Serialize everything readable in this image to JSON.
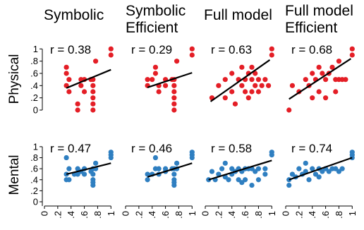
{
  "figure": {
    "row_labels": [
      "Physical",
      "Mental"
    ],
    "column_titles": [
      [
        "Symbolic"
      ],
      [
        "Symbolic",
        "Efficient"
      ],
      [
        "Full model"
      ],
      [
        "Full model",
        "Efficient"
      ]
    ],
    "colors": {
      "physical_points": "#e41e26",
      "mental_points": "#2f7fc1",
      "fit_line": "#000000",
      "axis": "#000000"
    }
  },
  "chart_data": [
    {
      "type": "scatter",
      "row": "Physical",
      "panel": "Symbolic",
      "annotation": "r = 0.38",
      "x": [
        0.33,
        0.33,
        0.33,
        0.37,
        0.37,
        0.5,
        0.5,
        0.55,
        0.55,
        0.6,
        0.6,
        0.7,
        0.73,
        0.73,
        0.73,
        0.73,
        0.73,
        0.73,
        0.77,
        1.0,
        1.0
      ],
      "y": [
        0.7,
        0.6,
        0.4,
        0.5,
        0.3,
        0.1,
        0.0,
        0.5,
        0.4,
        0.5,
        0.3,
        0.5,
        0.5,
        0.4,
        0.3,
        0.2,
        0.1,
        0.0,
        0.8,
        1.0,
        0.9
      ],
      "fit_line": {
        "x": [
          0.33,
          1.0
        ],
        "y": [
          0.36,
          0.66
        ]
      },
      "xlim": [
        0,
        1.05
      ],
      "ylim": [
        0,
        1.05
      ],
      "xticks": [
        0,
        0.2,
        0.4,
        0.6,
        0.8,
        1
      ],
      "yticks": [
        0,
        0.2,
        0.4,
        0.6,
        0.8,
        1
      ]
    },
    {
      "type": "scatter",
      "row": "Physical",
      "panel": "Symbolic Efficient",
      "annotation": "r = 0.29",
      "x": [
        0.33,
        0.33,
        0.4,
        0.45,
        0.45,
        0.5,
        0.5,
        0.6,
        0.6,
        0.7,
        0.73,
        0.73,
        0.73,
        0.73,
        0.73,
        0.73,
        0.77,
        1.0,
        1.0
      ],
      "y": [
        0.5,
        0.4,
        0.5,
        0.7,
        0.6,
        0.4,
        0.3,
        0.5,
        0.4,
        0.5,
        0.5,
        0.4,
        0.3,
        0.2,
        0.1,
        0.0,
        0.8,
        1.0,
        0.9
      ],
      "fit_line": {
        "x": [
          0.33,
          1.0
        ],
        "y": [
          0.37,
          0.61
        ]
      },
      "xlim": [
        0,
        1.05
      ],
      "ylim": [
        0,
        1.05
      ],
      "xticks": [
        0,
        0.2,
        0.4,
        0.6,
        0.8,
        1
      ],
      "yticks": [
        0,
        0.2,
        0.4,
        0.6,
        0.8,
        1
      ]
    },
    {
      "type": "scatter",
      "row": "Physical",
      "panel": "Full model",
      "annotation": "r = 0.63",
      "x": [
        0.1,
        0.2,
        0.3,
        0.3,
        0.4,
        0.4,
        0.45,
        0.5,
        0.55,
        0.55,
        0.6,
        0.6,
        0.65,
        0.65,
        0.7,
        0.7,
        0.7,
        0.75,
        0.75,
        0.8,
        0.8,
        0.85,
        0.9,
        0.95,
        1.0,
        1.0
      ],
      "y": [
        0.2,
        0.4,
        0.5,
        0.2,
        0.6,
        0.3,
        0.1,
        0.5,
        0.7,
        0.4,
        0.5,
        0.3,
        0.6,
        0.2,
        0.7,
        0.5,
        0.3,
        0.6,
        0.4,
        0.5,
        0.3,
        0.4,
        0.5,
        0.4,
        1.0,
        0.9
      ],
      "fit_line": {
        "x": [
          0.08,
          0.97
        ],
        "y": [
          0.14,
          0.82
        ]
      },
      "xlim": [
        0,
        1.05
      ],
      "ylim": [
        0,
        1.05
      ],
      "xticks": [
        0,
        0.2,
        0.4,
        0.6,
        0.8,
        1
      ],
      "yticks": [
        0,
        0.2,
        0.4,
        0.6,
        0.8,
        1
      ]
    },
    {
      "type": "scatter",
      "row": "Physical",
      "panel": "Full model Efficient",
      "annotation": "r = 0.68",
      "x": [
        0.05,
        0.1,
        0.2,
        0.3,
        0.35,
        0.4,
        0.4,
        0.45,
        0.5,
        0.5,
        0.55,
        0.6,
        0.6,
        0.65,
        0.7,
        0.75,
        0.75,
        0.8,
        0.8,
        0.85,
        0.9,
        1.0,
        1.0
      ],
      "y": [
        0.0,
        0.4,
        0.3,
        0.5,
        0.4,
        0.6,
        0.2,
        0.5,
        0.7,
        0.3,
        0.6,
        0.5,
        0.2,
        0.6,
        0.7,
        0.5,
        0.3,
        0.8,
        0.5,
        0.5,
        0.5,
        1.0,
        0.9
      ],
      "fit_line": {
        "x": [
          0.05,
          0.98
        ],
        "y": [
          0.18,
          0.84
        ]
      },
      "xlim": [
        0,
        1.05
      ],
      "ylim": [
        0,
        1.05
      ],
      "xticks": [
        0,
        0.2,
        0.4,
        0.6,
        0.8,
        1
      ],
      "yticks": [
        0,
        0.2,
        0.4,
        0.6,
        0.8,
        1
      ]
    },
    {
      "type": "scatter",
      "row": "Mental",
      "panel": "Symbolic",
      "annotation": "r = 0.47",
      "x": [
        0.33,
        0.33,
        0.33,
        0.37,
        0.37,
        0.45,
        0.5,
        0.5,
        0.55,
        0.6,
        0.6,
        0.7,
        0.73,
        0.73,
        0.73,
        0.73,
        0.73,
        0.77,
        0.77,
        1.0,
        1.0,
        1.0
      ],
      "y": [
        0.8,
        0.5,
        0.4,
        0.6,
        0.4,
        0.5,
        0.6,
        0.5,
        0.55,
        0.6,
        0.5,
        0.55,
        0.6,
        0.5,
        0.4,
        0.35,
        0.3,
        0.7,
        0.6,
        0.9,
        0.85,
        0.8
      ],
      "fit_line": {
        "x": [
          0.33,
          1.0
        ],
        "y": [
          0.5,
          0.7
        ]
      },
      "xlim": [
        0,
        1.05
      ],
      "ylim": [
        0,
        1.05
      ],
      "xticks": [
        0,
        0.2,
        0.4,
        0.6,
        0.8,
        1
      ],
      "yticks": [
        0,
        0.2,
        0.4,
        0.6,
        0.8,
        1
      ]
    },
    {
      "type": "scatter",
      "row": "Mental",
      "panel": "Symbolic Efficient",
      "annotation": "r = 0.46",
      "x": [
        0.33,
        0.33,
        0.4,
        0.45,
        0.45,
        0.5,
        0.5,
        0.6,
        0.6,
        0.7,
        0.73,
        0.73,
        0.73,
        0.73,
        0.73,
        0.77,
        0.77,
        1.0,
        1.0,
        1.0
      ],
      "y": [
        0.4,
        0.5,
        0.5,
        0.8,
        0.6,
        0.6,
        0.5,
        0.6,
        0.55,
        0.6,
        0.6,
        0.5,
        0.4,
        0.35,
        0.3,
        0.7,
        0.6,
        0.9,
        0.85,
        0.8
      ],
      "fit_line": {
        "x": [
          0.33,
          1.0
        ],
        "y": [
          0.45,
          0.7
        ]
      },
      "xlim": [
        0,
        1.05
      ],
      "ylim": [
        0,
        1.05
      ],
      "xticks": [
        0,
        0.2,
        0.4,
        0.6,
        0.8,
        1
      ],
      "yticks": [
        0,
        0.2,
        0.4,
        0.6,
        0.8,
        1
      ]
    },
    {
      "type": "scatter",
      "row": "Mental",
      "panel": "Full model",
      "annotation": "r = 0.58",
      "x": [
        0.05,
        0.1,
        0.15,
        0.2,
        0.25,
        0.3,
        0.3,
        0.35,
        0.4,
        0.4,
        0.45,
        0.5,
        0.5,
        0.55,
        0.55,
        0.6,
        0.6,
        0.65,
        0.7,
        0.7,
        0.75,
        0.8,
        0.8,
        0.9,
        0.9,
        1.0,
        1.0
      ],
      "y": [
        0.4,
        0.55,
        0.4,
        0.5,
        0.6,
        0.7,
        0.45,
        0.4,
        0.6,
        0.5,
        0.55,
        0.4,
        0.6,
        0.35,
        0.55,
        0.6,
        0.4,
        0.6,
        0.6,
        0.3,
        0.55,
        0.6,
        0.4,
        0.6,
        0.5,
        0.9,
        0.85
      ],
      "fit_line": {
        "x": [
          0.05,
          1.0
        ],
        "y": [
          0.4,
          0.75
        ]
      },
      "xlim": [
        0,
        1.05
      ],
      "ylim": [
        0,
        1.05
      ],
      "xticks": [
        0,
        0.2,
        0.4,
        0.6,
        0.8,
        1
      ],
      "yticks": [
        0,
        0.2,
        0.4,
        0.6,
        0.8,
        1
      ]
    },
    {
      "type": "scatter",
      "row": "Mental",
      "panel": "Full model Efficient",
      "annotation": "r = 0.74",
      "x": [
        0.05,
        0.05,
        0.1,
        0.15,
        0.2,
        0.25,
        0.3,
        0.3,
        0.35,
        0.4,
        0.45,
        0.5,
        0.5,
        0.55,
        0.6,
        0.65,
        0.7,
        0.75,
        0.8,
        0.85,
        1.0,
        1.0,
        1.0
      ],
      "y": [
        0.3,
        0.4,
        0.5,
        0.45,
        0.6,
        0.5,
        0.55,
        0.7,
        0.4,
        0.6,
        0.5,
        0.6,
        0.45,
        0.55,
        0.6,
        0.55,
        0.6,
        0.6,
        0.55,
        0.6,
        0.9,
        0.85,
        0.8
      ],
      "fit_line": {
        "x": [
          0.05,
          1.0
        ],
        "y": [
          0.4,
          0.8
        ]
      },
      "xlim": [
        0,
        1.05
      ],
      "ylim": [
        0,
        1.05
      ],
      "xticks": [
        0,
        0.2,
        0.4,
        0.6,
        0.8,
        1
      ],
      "yticks": [
        0,
        0.2,
        0.4,
        0.6,
        0.8,
        1
      ]
    }
  ]
}
